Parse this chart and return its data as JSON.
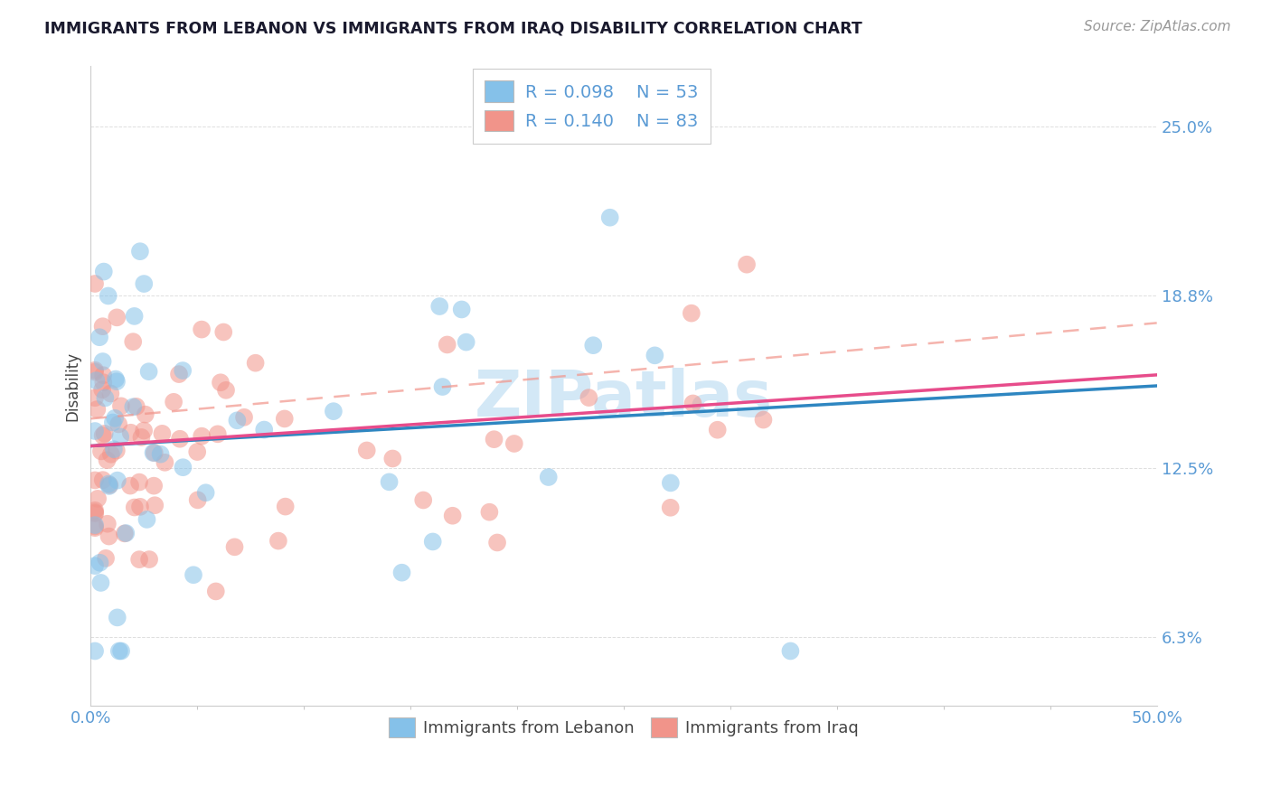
{
  "title": "IMMIGRANTS FROM LEBANON VS IMMIGRANTS FROM IRAQ DISABILITY CORRELATION CHART",
  "source": "Source: ZipAtlas.com",
  "ylabel": "Disability",
  "color_lebanon": "#85c1e9",
  "color_iraq": "#f1948a",
  "trend_color_lebanon": "#2e86c1",
  "trend_color_iraq": "#e74c8b",
  "trend_dashed_color": "#f1948a",
  "R_lebanon": "0.098",
  "N_lebanon": "53",
  "R_iraq": "0.140",
  "N_iraq": "83",
  "xmin": 0.0,
  "xmax": 0.5,
  "ymin": 0.038,
  "ymax": 0.272,
  "yticks": [
    0.063,
    0.125,
    0.188,
    0.25
  ],
  "ytick_labels": [
    "6.3%",
    "12.5%",
    "18.8%",
    "25.0%"
  ],
  "xtick_labels": [
    "0.0%",
    "50.0%"
  ],
  "background_color": "#ffffff",
  "grid_color": "#dedede",
  "title_color": "#1a1a2e",
  "source_color": "#999999",
  "axis_tick_color": "#5b9bd5",
  "body_text_color": "#444444",
  "legend_text_color": "#5b9bd5",
  "watermark": "ZIPatlas",
  "watermark_color": "#cce4f5"
}
